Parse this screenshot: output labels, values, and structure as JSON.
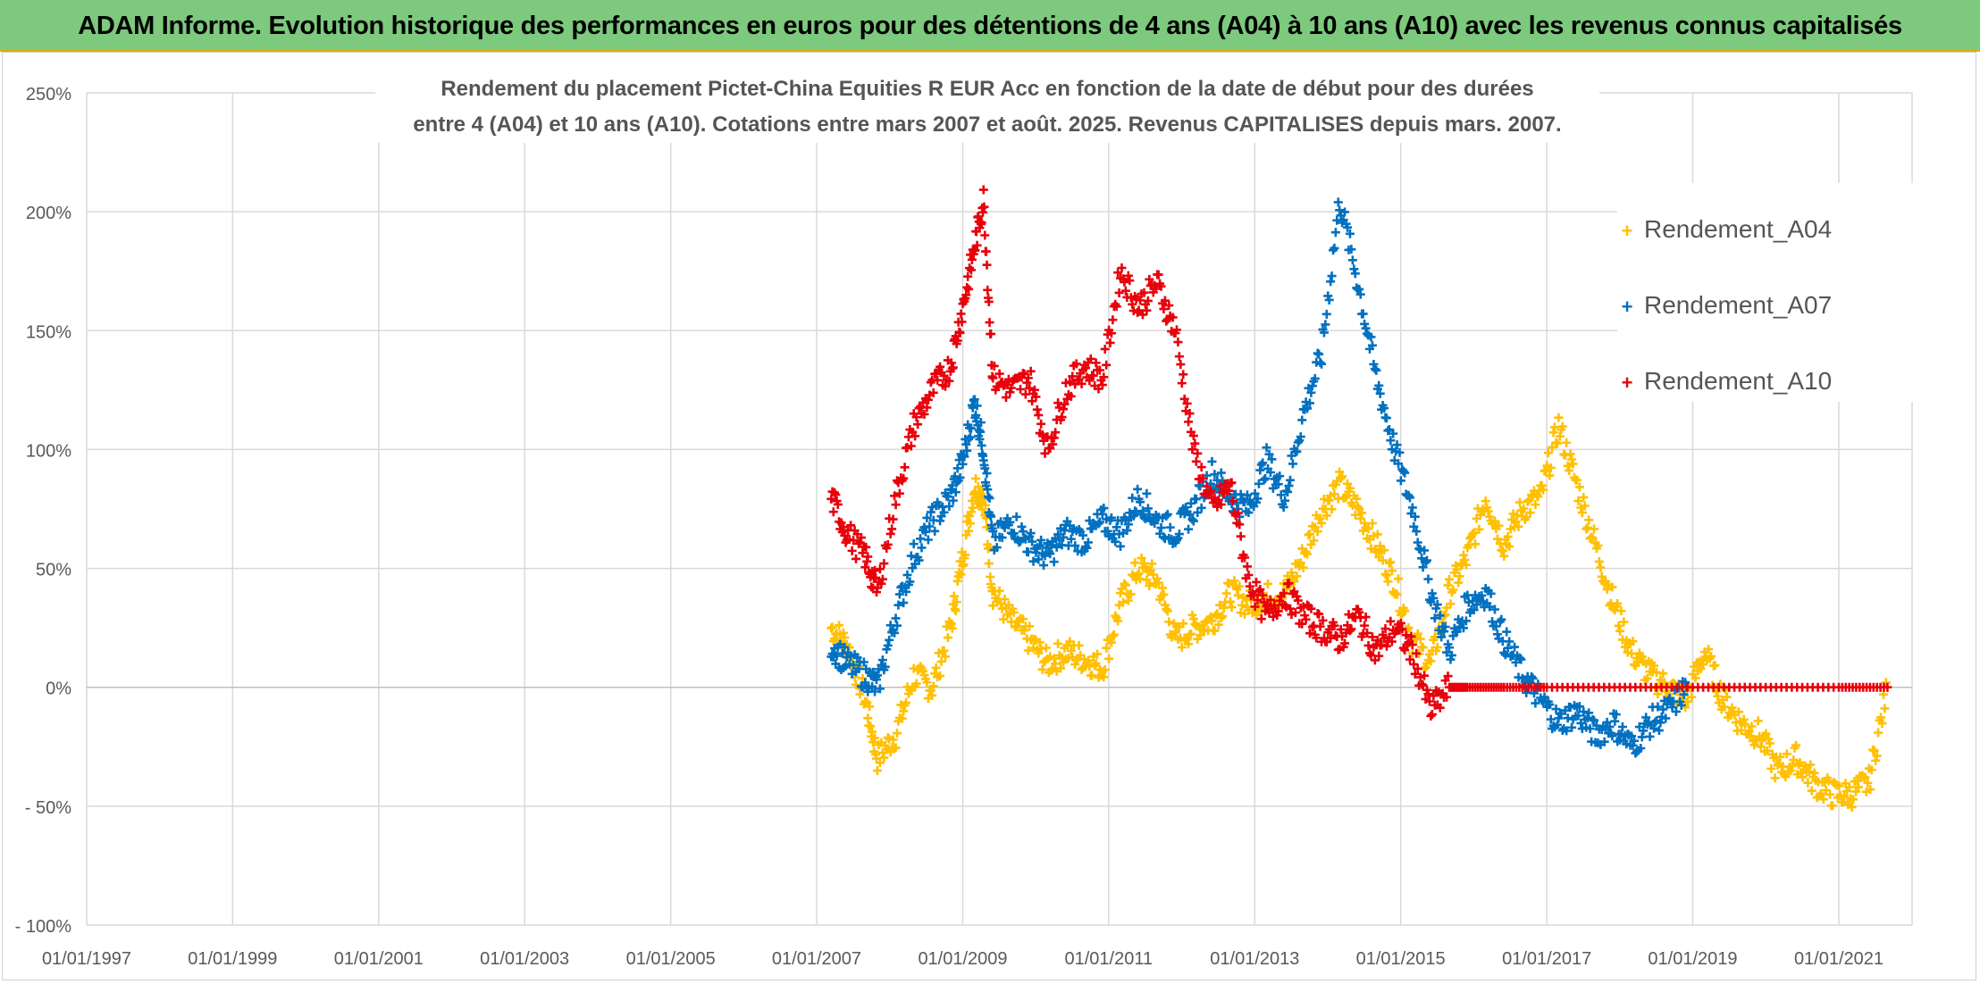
{
  "banner": {
    "text": "ADAM Informe. Evolution historique des performances en euros pour des détentions de 4 ans (A04) à 10 ans (A10) avec les revenus connus capitalisés",
    "background": "#7dc97d"
  },
  "chart_data": {
    "type": "scatter",
    "title_lines": [
      "Rendement du placement Pictet-China Equities R EUR Acc en fonction de la date de début pour des durées",
      "entre 4 (A04) et 10 ans (A10). Cotations entre mars 2007 et août. 2025. Revenus CAPITALISES depuis mars. 2007."
    ],
    "xlabel": "",
    "ylabel": "",
    "x_range": [
      "1997-01-01",
      "2022-01-01"
    ],
    "ylim": [
      -100,
      250
    ],
    "grid": true,
    "legend_position": "right",
    "x_ticks": [
      "01/01/1997",
      "01/01/1999",
      "01/01/2001",
      "01/01/2003",
      "01/01/2005",
      "01/01/2007",
      "01/01/2009",
      "01/01/2011",
      "01/01/2013",
      "01/01/2015",
      "01/01/2017",
      "01/01/2019",
      "01/01/2021"
    ],
    "y_ticks": [
      {
        "value": 250,
        "label": "250%"
      },
      {
        "value": 200,
        "label": "200%"
      },
      {
        "value": 150,
        "label": "150%"
      },
      {
        "value": 100,
        "label": "100%"
      },
      {
        "value": 50,
        "label": "50%"
      },
      {
        "value": 0,
        "label": "0%"
      },
      {
        "value": -50,
        "label": "- 50%"
      },
      {
        "value": -100,
        "label": "- 100%"
      }
    ],
    "series": [
      {
        "name": "Rendement_A04",
        "color": "#ffc000",
        "points": [
          [
            "2007-03-15",
            25
          ],
          [
            "2007-06-01",
            18
          ],
          [
            "2007-09-01",
            -5
          ],
          [
            "2007-11-01",
            -30
          ],
          [
            "2008-02-01",
            -20
          ],
          [
            "2008-05-01",
            5
          ],
          [
            "2008-08-01",
            0
          ],
          [
            "2008-11-01",
            25
          ],
          [
            "2009-01-01",
            55
          ],
          [
            "2009-03-01",
            85
          ],
          [
            "2009-04-15",
            80
          ],
          [
            "2009-06-01",
            40
          ],
          [
            "2009-09-01",
            28
          ],
          [
            "2009-12-01",
            20
          ],
          [
            "2010-03-01",
            10
          ],
          [
            "2010-06-01",
            15
          ],
          [
            "2010-09-01",
            12
          ],
          [
            "2010-12-01",
            8
          ],
          [
            "2011-03-01",
            35
          ],
          [
            "2011-06-01",
            50
          ],
          [
            "2011-09-01",
            45
          ],
          [
            "2011-12-01",
            20
          ],
          [
            "2012-03-01",
            25
          ],
          [
            "2012-06-01",
            28
          ],
          [
            "2012-09-01",
            40
          ],
          [
            "2012-12-01",
            35
          ],
          [
            "2013-03-01",
            38
          ],
          [
            "2013-06-01",
            40
          ],
          [
            "2013-09-01",
            55
          ],
          [
            "2013-12-01",
            75
          ],
          [
            "2014-03-01",
            85
          ],
          [
            "2014-06-01",
            75
          ],
          [
            "2014-09-01",
            60
          ],
          [
            "2014-12-01",
            45
          ],
          [
            "2015-03-01",
            20
          ],
          [
            "2015-06-01",
            10
          ],
          [
            "2015-09-01",
            40
          ],
          [
            "2015-12-01",
            55
          ],
          [
            "2016-03-01",
            80
          ],
          [
            "2016-06-01",
            60
          ],
          [
            "2016-09-01",
            75
          ],
          [
            "2016-12-01",
            80
          ],
          [
            "2017-03-01",
            110
          ],
          [
            "2017-06-01",
            85
          ],
          [
            "2017-09-01",
            60
          ],
          [
            "2017-12-01",
            35
          ],
          [
            "2018-03-01",
            15
          ],
          [
            "2018-06-01",
            5
          ],
          [
            "2018-09-01",
            0
          ],
          [
            "2018-12-01",
            -5
          ],
          [
            "2019-03-01",
            15
          ],
          [
            "2019-06-01",
            -5
          ],
          [
            "2019-09-01",
            -15
          ],
          [
            "2019-12-01",
            -20
          ],
          [
            "2020-03-01",
            -35
          ],
          [
            "2020-06-01",
            -30
          ],
          [
            "2020-09-01",
            -40
          ],
          [
            "2020-12-01",
            -45
          ],
          [
            "2021-03-01",
            -45
          ],
          [
            "2021-06-01",
            -40
          ],
          [
            "2021-09-01",
            0
          ]
        ]
      },
      {
        "name": "Rendement_A07",
        "color": "#0070c0",
        "points": [
          [
            "2007-03-15",
            18
          ],
          [
            "2007-06-01",
            10
          ],
          [
            "2007-09-01",
            5
          ],
          [
            "2007-11-01",
            0
          ],
          [
            "2008-02-01",
            30
          ],
          [
            "2008-05-01",
            55
          ],
          [
            "2008-08-01",
            70
          ],
          [
            "2008-11-01",
            80
          ],
          [
            "2009-01-01",
            95
          ],
          [
            "2009-03-01",
            120
          ],
          [
            "2009-04-15",
            100
          ],
          [
            "2009-06-01",
            60
          ],
          [
            "2009-09-01",
            70
          ],
          [
            "2009-12-01",
            60
          ],
          [
            "2010-03-01",
            55
          ],
          [
            "2010-06-01",
            65
          ],
          [
            "2010-09-01",
            62
          ],
          [
            "2010-12-01",
            70
          ],
          [
            "2011-03-01",
            65
          ],
          [
            "2011-06-01",
            80
          ],
          [
            "2011-09-01",
            70
          ],
          [
            "2011-12-01",
            65
          ],
          [
            "2012-03-01",
            75
          ],
          [
            "2012-06-01",
            90
          ],
          [
            "2012-09-01",
            80
          ],
          [
            "2012-12-01",
            75
          ],
          [
            "2013-03-01",
            95
          ],
          [
            "2013-06-01",
            80
          ],
          [
            "2013-09-01",
            115
          ],
          [
            "2013-12-01",
            140
          ],
          [
            "2014-03-01",
            205
          ],
          [
            "2014-06-01",
            170
          ],
          [
            "2014-09-01",
            130
          ],
          [
            "2014-12-01",
            100
          ],
          [
            "2015-03-01",
            75
          ],
          [
            "2015-06-01",
            40
          ],
          [
            "2015-09-01",
            15
          ],
          [
            "2015-12-01",
            35
          ],
          [
            "2016-03-01",
            40
          ],
          [
            "2016-06-01",
            20
          ],
          [
            "2016-09-01",
            5
          ],
          [
            "2016-12-01",
            -5
          ],
          [
            "2017-03-01",
            -15
          ],
          [
            "2017-06-01",
            -10
          ],
          [
            "2017-09-01",
            -20
          ],
          [
            "2017-12-01",
            -15
          ],
          [
            "2018-03-01",
            -25
          ],
          [
            "2018-06-01",
            -15
          ],
          [
            "2018-09-01",
            -10
          ],
          [
            "2018-12-01",
            0
          ]
        ]
      },
      {
        "name": "Rendement_A10",
        "color": "#e8000b",
        "points": [
          [
            "2007-03-15",
            80
          ],
          [
            "2007-06-01",
            65
          ],
          [
            "2007-09-01",
            55
          ],
          [
            "2007-11-01",
            40
          ],
          [
            "2008-02-01",
            80
          ],
          [
            "2008-05-01",
            110
          ],
          [
            "2008-08-01",
            125
          ],
          [
            "2008-11-01",
            135
          ],
          [
            "2009-01-01",
            160
          ],
          [
            "2009-03-01",
            185
          ],
          [
            "2009-04-15",
            205
          ],
          [
            "2009-06-01",
            130
          ],
          [
            "2009-09-01",
            125
          ],
          [
            "2009-12-01",
            130
          ],
          [
            "2010-03-01",
            100
          ],
          [
            "2010-06-01",
            125
          ],
          [
            "2010-09-01",
            135
          ],
          [
            "2010-12-01",
            130
          ],
          [
            "2011-03-01",
            175
          ],
          [
            "2011-06-01",
            160
          ],
          [
            "2011-09-01",
            170
          ],
          [
            "2011-12-01",
            150
          ],
          [
            "2012-03-01",
            100
          ],
          [
            "2012-06-01",
            75
          ],
          [
            "2012-09-01",
            85
          ],
          [
            "2012-12-01",
            45
          ],
          [
            "2013-03-01",
            30
          ],
          [
            "2013-06-01",
            40
          ],
          [
            "2013-09-01",
            30
          ],
          [
            "2013-12-01",
            25
          ],
          [
            "2014-03-01",
            20
          ],
          [
            "2014-06-01",
            30
          ],
          [
            "2014-09-01",
            15
          ],
          [
            "2014-12-01",
            25
          ],
          [
            "2015-03-01",
            15
          ],
          [
            "2015-06-01",
            -10
          ],
          [
            "2015-09-01",
            0
          ],
          [
            "2015-12-01",
            0
          ],
          [
            "2016-06-01",
            0
          ],
          [
            "2017-01-01",
            0
          ],
          [
            "2018-01-01",
            0
          ],
          [
            "2019-01-01",
            0
          ],
          [
            "2020-01-01",
            0
          ],
          [
            "2021-01-01",
            0
          ],
          [
            "2021-09-01",
            0
          ]
        ]
      }
    ]
  }
}
